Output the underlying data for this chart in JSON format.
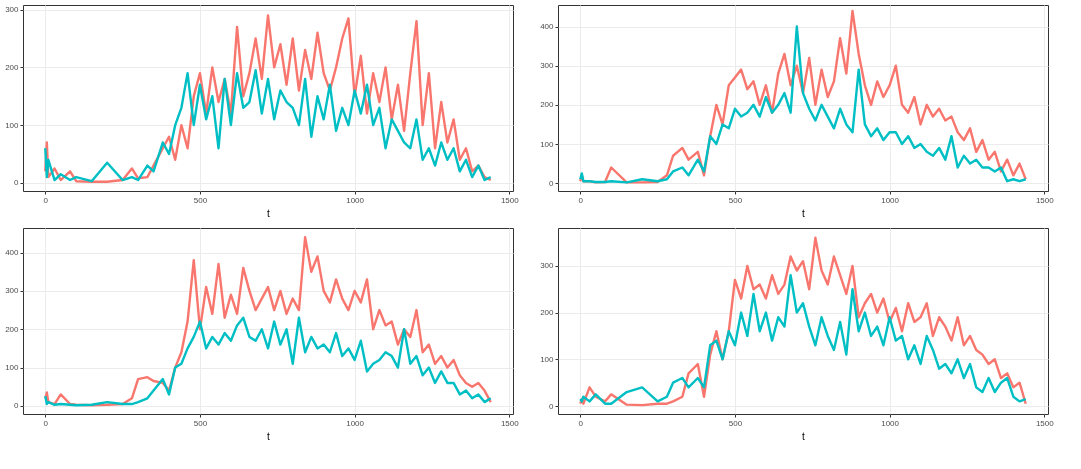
{
  "chart_data": [
    {
      "type": "line",
      "xlabel": "t",
      "xlim": [
        -72,
        1512
      ],
      "ylim": [
        -14,
        308
      ],
      "xticks": [
        0,
        500,
        1000,
        1500
      ],
      "yticks": [
        0,
        100,
        200,
        300
      ],
      "grid": true,
      "legend": false,
      "x": [
        0,
        5,
        10,
        30,
        50,
        80,
        100,
        150,
        200,
        250,
        280,
        300,
        330,
        350,
        380,
        400,
        420,
        440,
        460,
        480,
        500,
        520,
        540,
        560,
        580,
        600,
        620,
        640,
        660,
        680,
        700,
        720,
        740,
        760,
        780,
        800,
        820,
        840,
        860,
        880,
        900,
        920,
        940,
        960,
        980,
        1000,
        1020,
        1040,
        1060,
        1080,
        1100,
        1120,
        1140,
        1160,
        1180,
        1200,
        1220,
        1240,
        1260,
        1280,
        1300,
        1320,
        1340,
        1360,
        1380,
        1400,
        1420,
        1440
      ],
      "series": [
        {
          "color": "#f8766d",
          "values": [
            20,
            70,
            10,
            25,
            5,
            20,
            3,
            2,
            2,
            5,
            25,
            8,
            10,
            30,
            60,
            80,
            40,
            100,
            60,
            150,
            190,
            120,
            200,
            140,
            180,
            120,
            270,
            150,
            190,
            250,
            180,
            290,
            200,
            240,
            170,
            250,
            160,
            230,
            180,
            260,
            190,
            160,
            200,
            250,
            285,
            150,
            220,
            120,
            190,
            140,
            200,
            110,
            170,
            90,
            190,
            280,
            100,
            190,
            60,
            140,
            70,
            110,
            40,
            60,
            20,
            30,
            10,
            5
          ]
        },
        {
          "color": "#00bfc4",
          "values": [
            60,
            10,
            40,
            5,
            15,
            5,
            10,
            3,
            35,
            5,
            10,
            5,
            30,
            20,
            70,
            50,
            100,
            130,
            190,
            100,
            170,
            110,
            150,
            60,
            180,
            100,
            190,
            130,
            140,
            195,
            120,
            180,
            110,
            160,
            140,
            130,
            100,
            180,
            80,
            150,
            110,
            170,
            90,
            130,
            100,
            160,
            120,
            170,
            100,
            130,
            60,
            110,
            90,
            70,
            60,
            110,
            40,
            60,
            30,
            70,
            40,
            60,
            20,
            40,
            10,
            30,
            5,
            10
          ]
        }
      ]
    },
    {
      "type": "line",
      "xlabel": "t",
      "xlim": [
        -72,
        1512
      ],
      "ylim": [
        -20,
        455
      ],
      "xticks": [
        0,
        500,
        1000,
        1500
      ],
      "yticks": [
        0,
        100,
        200,
        300,
        400
      ],
      "grid": true,
      "legend": false,
      "x": [
        0,
        5,
        10,
        30,
        50,
        80,
        100,
        150,
        200,
        250,
        280,
        300,
        330,
        350,
        380,
        400,
        420,
        440,
        460,
        480,
        500,
        520,
        540,
        560,
        580,
        600,
        620,
        640,
        660,
        680,
        700,
        720,
        740,
        760,
        780,
        800,
        820,
        840,
        860,
        880,
        900,
        920,
        940,
        960,
        980,
        1000,
        1020,
        1040,
        1060,
        1080,
        1100,
        1120,
        1140,
        1160,
        1180,
        1200,
        1220,
        1240,
        1260,
        1280,
        1300,
        1320,
        1340,
        1360,
        1380,
        1400,
        1420,
        1440
      ],
      "series": [
        {
          "color": "#f8766d",
          "values": [
            5,
            20,
            5,
            5,
            2,
            3,
            40,
            2,
            2,
            3,
            20,
            70,
            90,
            60,
            80,
            20,
            120,
            200,
            150,
            250,
            270,
            290,
            240,
            260,
            200,
            250,
            180,
            280,
            330,
            250,
            300,
            230,
            320,
            200,
            290,
            220,
            260,
            370,
            280,
            440,
            330,
            250,
            200,
            260,
            220,
            250,
            300,
            200,
            180,
            220,
            150,
            200,
            170,
            190,
            160,
            170,
            130,
            110,
            140,
            80,
            110,
            60,
            80,
            30,
            60,
            20,
            50,
            10
          ]
        },
        {
          "color": "#00bfc4",
          "values": [
            10,
            25,
            5,
            5,
            3,
            3,
            5,
            2,
            10,
            5,
            10,
            30,
            40,
            20,
            60,
            30,
            120,
            100,
            150,
            140,
            190,
            170,
            180,
            200,
            170,
            220,
            180,
            200,
            230,
            180,
            400,
            230,
            190,
            160,
            200,
            170,
            140,
            190,
            150,
            130,
            290,
            150,
            120,
            140,
            110,
            130,
            130,
            100,
            120,
            90,
            100,
            80,
            70,
            90,
            60,
            120,
            40,
            70,
            50,
            60,
            40,
            40,
            30,
            40,
            5,
            10,
            5,
            10
          ]
        }
      ]
    },
    {
      "type": "line",
      "xlabel": "t",
      "xlim": [
        -72,
        1512
      ],
      "ylim": [
        -21,
        464
      ],
      "xticks": [
        0,
        500,
        1000,
        1500
      ],
      "yticks": [
        0,
        100,
        200,
        300,
        400
      ],
      "grid": true,
      "legend": false,
      "x": [
        0,
        5,
        10,
        30,
        50,
        80,
        100,
        150,
        200,
        250,
        280,
        300,
        330,
        350,
        380,
        400,
        420,
        440,
        460,
        480,
        500,
        520,
        540,
        560,
        580,
        600,
        620,
        640,
        660,
        680,
        700,
        720,
        740,
        760,
        780,
        800,
        820,
        840,
        860,
        880,
        900,
        920,
        940,
        960,
        980,
        1000,
        1020,
        1040,
        1060,
        1080,
        1100,
        1120,
        1140,
        1160,
        1180,
        1200,
        1220,
        1240,
        1260,
        1280,
        1300,
        1320,
        1340,
        1360,
        1380,
        1400,
        1420,
        1440
      ],
      "series": [
        {
          "color": "#f8766d",
          "values": [
            20,
            35,
            10,
            5,
            30,
            5,
            3,
            2,
            3,
            5,
            20,
            70,
            75,
            65,
            60,
            40,
            100,
            140,
            220,
            380,
            200,
            310,
            240,
            370,
            230,
            290,
            240,
            360,
            300,
            250,
            280,
            310,
            250,
            300,
            240,
            280,
            250,
            440,
            350,
            390,
            300,
            270,
            330,
            280,
            250,
            300,
            270,
            330,
            200,
            250,
            210,
            220,
            160,
            200,
            180,
            250,
            140,
            160,
            110,
            130,
            100,
            120,
            80,
            60,
            50,
            60,
            40,
            10
          ]
        },
        {
          "color": "#00bfc4",
          "values": [
            25,
            5,
            10,
            3,
            5,
            3,
            2,
            3,
            10,
            5,
            5,
            10,
            20,
            40,
            70,
            30,
            100,
            110,
            150,
            180,
            220,
            150,
            180,
            160,
            190,
            170,
            210,
            230,
            180,
            170,
            200,
            150,
            220,
            160,
            200,
            110,
            230,
            140,
            180,
            150,
            160,
            140,
            190,
            130,
            150,
            120,
            170,
            90,
            110,
            120,
            140,
            130,
            100,
            200,
            110,
            130,
            80,
            100,
            60,
            90,
            60,
            60,
            30,
            40,
            20,
            30,
            10,
            20
          ]
        }
      ]
    },
    {
      "type": "line",
      "xlabel": "t",
      "xlim": [
        -72,
        1512
      ],
      "ylim": [
        -17,
        381
      ],
      "xticks": [
        0,
        500,
        1000,
        1500
      ],
      "yticks": [
        0,
        100,
        200,
        300
      ],
      "grid": true,
      "legend": false,
      "x": [
        0,
        5,
        10,
        30,
        50,
        80,
        100,
        150,
        200,
        250,
        280,
        300,
        330,
        350,
        380,
        400,
        420,
        440,
        460,
        480,
        500,
        520,
        540,
        560,
        580,
        600,
        620,
        640,
        660,
        680,
        700,
        720,
        740,
        760,
        780,
        800,
        820,
        840,
        860,
        880,
        900,
        920,
        940,
        960,
        980,
        1000,
        1020,
        1040,
        1060,
        1080,
        1100,
        1120,
        1140,
        1160,
        1180,
        1200,
        1220,
        1240,
        1260,
        1280,
        1300,
        1320,
        1340,
        1360,
        1380,
        1400,
        1420,
        1440
      ],
      "series": [
        {
          "color": "#f8766d",
          "values": [
            5,
            15,
            5,
            40,
            20,
            10,
            25,
            3,
            2,
            5,
            5,
            10,
            20,
            70,
            90,
            20,
            110,
            160,
            100,
            160,
            270,
            230,
            300,
            250,
            260,
            230,
            280,
            240,
            260,
            320,
            290,
            310,
            250,
            360,
            290,
            260,
            320,
            280,
            240,
            300,
            190,
            220,
            240,
            200,
            230,
            180,
            210,
            160,
            220,
            180,
            190,
            220,
            150,
            190,
            170,
            140,
            190,
            130,
            150,
            120,
            110,
            90,
            100,
            60,
            70,
            40,
            50,
            5
          ]
        },
        {
          "color": "#00bfc4",
          "values": [
            15,
            10,
            20,
            10,
            25,
            5,
            5,
            30,
            40,
            10,
            20,
            50,
            60,
            40,
            60,
            40,
            130,
            140,
            100,
            160,
            130,
            200,
            150,
            240,
            160,
            200,
            140,
            190,
            170,
            280,
            200,
            220,
            170,
            130,
            190,
            150,
            120,
            180,
            110,
            250,
            160,
            200,
            150,
            170,
            130,
            190,
            140,
            150,
            100,
            130,
            90,
            150,
            120,
            80,
            90,
            70,
            100,
            60,
            90,
            40,
            30,
            60,
            30,
            50,
            60,
            20,
            10,
            15
          ]
        }
      ]
    }
  ]
}
